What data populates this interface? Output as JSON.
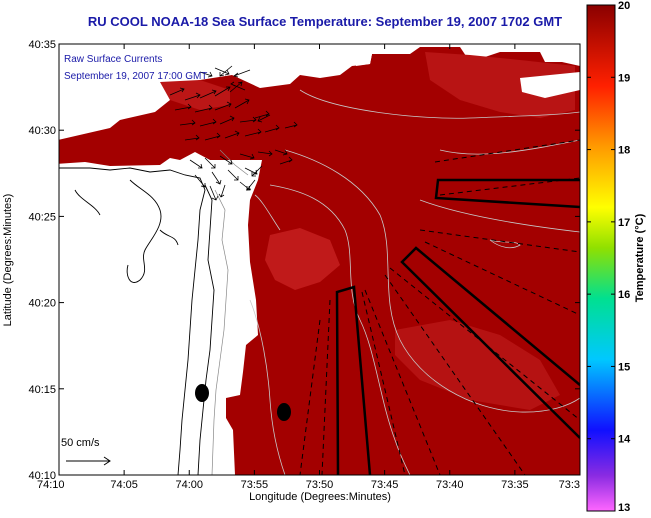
{
  "title": "RU COOL  NOAA-18  Sea Surface Temperature:  September 19, 2007 1702 GMT",
  "inset": {
    "line1": "Raw Surface Currents",
    "line2": "September 19, 2007 17:00 GMT"
  },
  "scale_label": "50 cm/s",
  "xlabel": "Longitude (Degrees:Minutes)",
  "ylabel": "Latitude (Degrees:Minutes)",
  "x_ticks": [
    "74:10",
    "74:05",
    "74:00",
    "73:55",
    "73:50",
    "73:45",
    "73:40",
    "73:35",
    "73:3"
  ],
  "y_ticks": [
    "40:35",
    "40:30",
    "40:25",
    "40:20",
    "40:15",
    "40:10"
  ],
  "colorbar": {
    "label": "Temperature (°C)",
    "ticks": [
      "20",
      "19",
      "18",
      "17",
      "16",
      "15",
      "14",
      "13"
    ],
    "range": [
      13,
      20
    ]
  },
  "colors": {
    "title": "#1a1aa8",
    "sst_main": "#a00000",
    "sst_warm": "#c01818",
    "land": "#ffffff"
  }
}
